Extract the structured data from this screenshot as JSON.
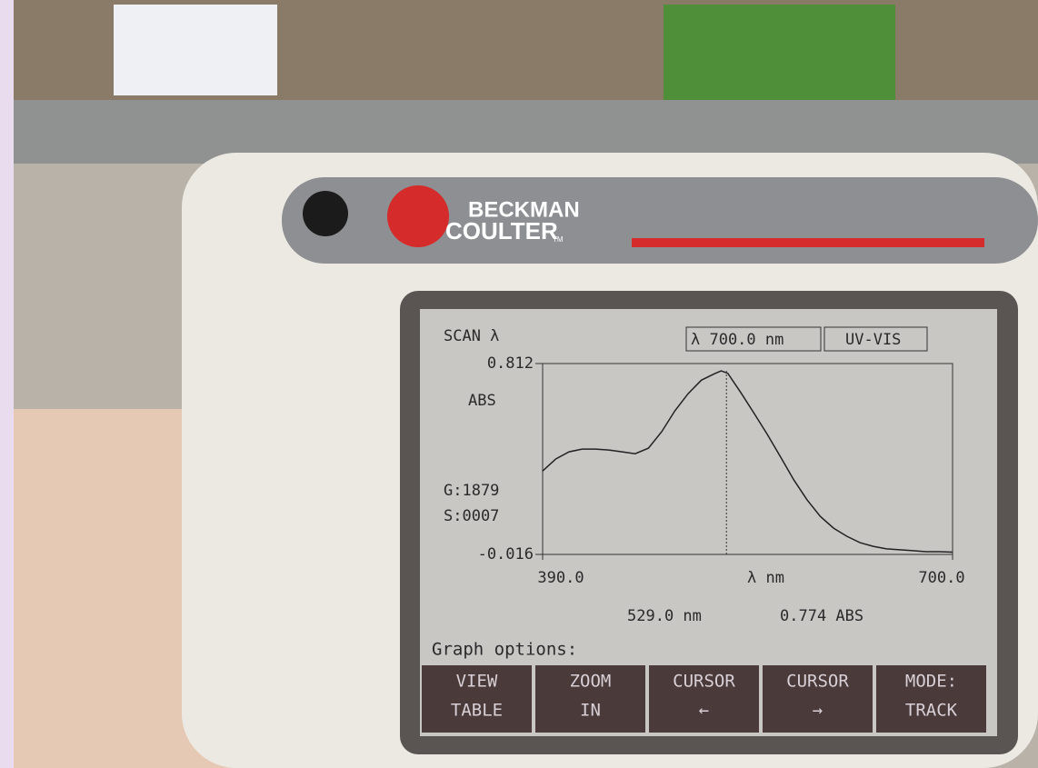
{
  "brand": {
    "line1": "BECKMAN",
    "line2": "COULTER",
    "tm": "TM"
  },
  "screen": {
    "mode": "SCAN λ",
    "wavelength": "λ  700.0 nm",
    "lamp": "UV-VIS",
    "y_labels": [
      "ABS",
      "G:1879",
      "S:0007"
    ],
    "readout": [
      "529.0 nm",
      "0.774 ABS"
    ],
    "options_title": "Graph options:",
    "buttons": [
      [
        "VIEW",
        "TABLE"
      ],
      [
        "ZOOM",
        "IN"
      ],
      [
        "CURSOR",
        "←"
      ],
      [
        "CURSOR",
        "→"
      ],
      [
        "MODE:",
        "TRACK"
      ]
    ]
  },
  "chart_data": {
    "type": "line",
    "color": "#222",
    "x": [
      390,
      400,
      410,
      420,
      430,
      440,
      450,
      460,
      470,
      480,
      490,
      500,
      510,
      520,
      525,
      530,
      540,
      550,
      560,
      570,
      580,
      590,
      600,
      610,
      620,
      630,
      640,
      650,
      660,
      670,
      680,
      690,
      700
    ],
    "values": [
      0.346,
      0.398,
      0.429,
      0.441,
      0.441,
      0.437,
      0.429,
      0.421,
      0.445,
      0.516,
      0.607,
      0.681,
      0.74,
      0.768,
      0.78,
      0.77,
      0.685,
      0.595,
      0.504,
      0.406,
      0.307,
      0.22,
      0.149,
      0.098,
      0.063,
      0.035,
      0.019,
      0.008,
      0.004,
      0.0,
      -0.004,
      -0.004,
      -0.006
    ],
    "xlim": [
      390,
      700
    ],
    "ylim": [
      -0.016,
      0.812
    ],
    "xticks": [
      {
        "value": 390,
        "label": "390.0"
      },
      {
        "value": 700,
        "label": "700.0"
      }
    ],
    "yticks": [
      0.812,
      -0.016
    ],
    "xlabel": "λ nm",
    "cursor_x": 529
  }
}
